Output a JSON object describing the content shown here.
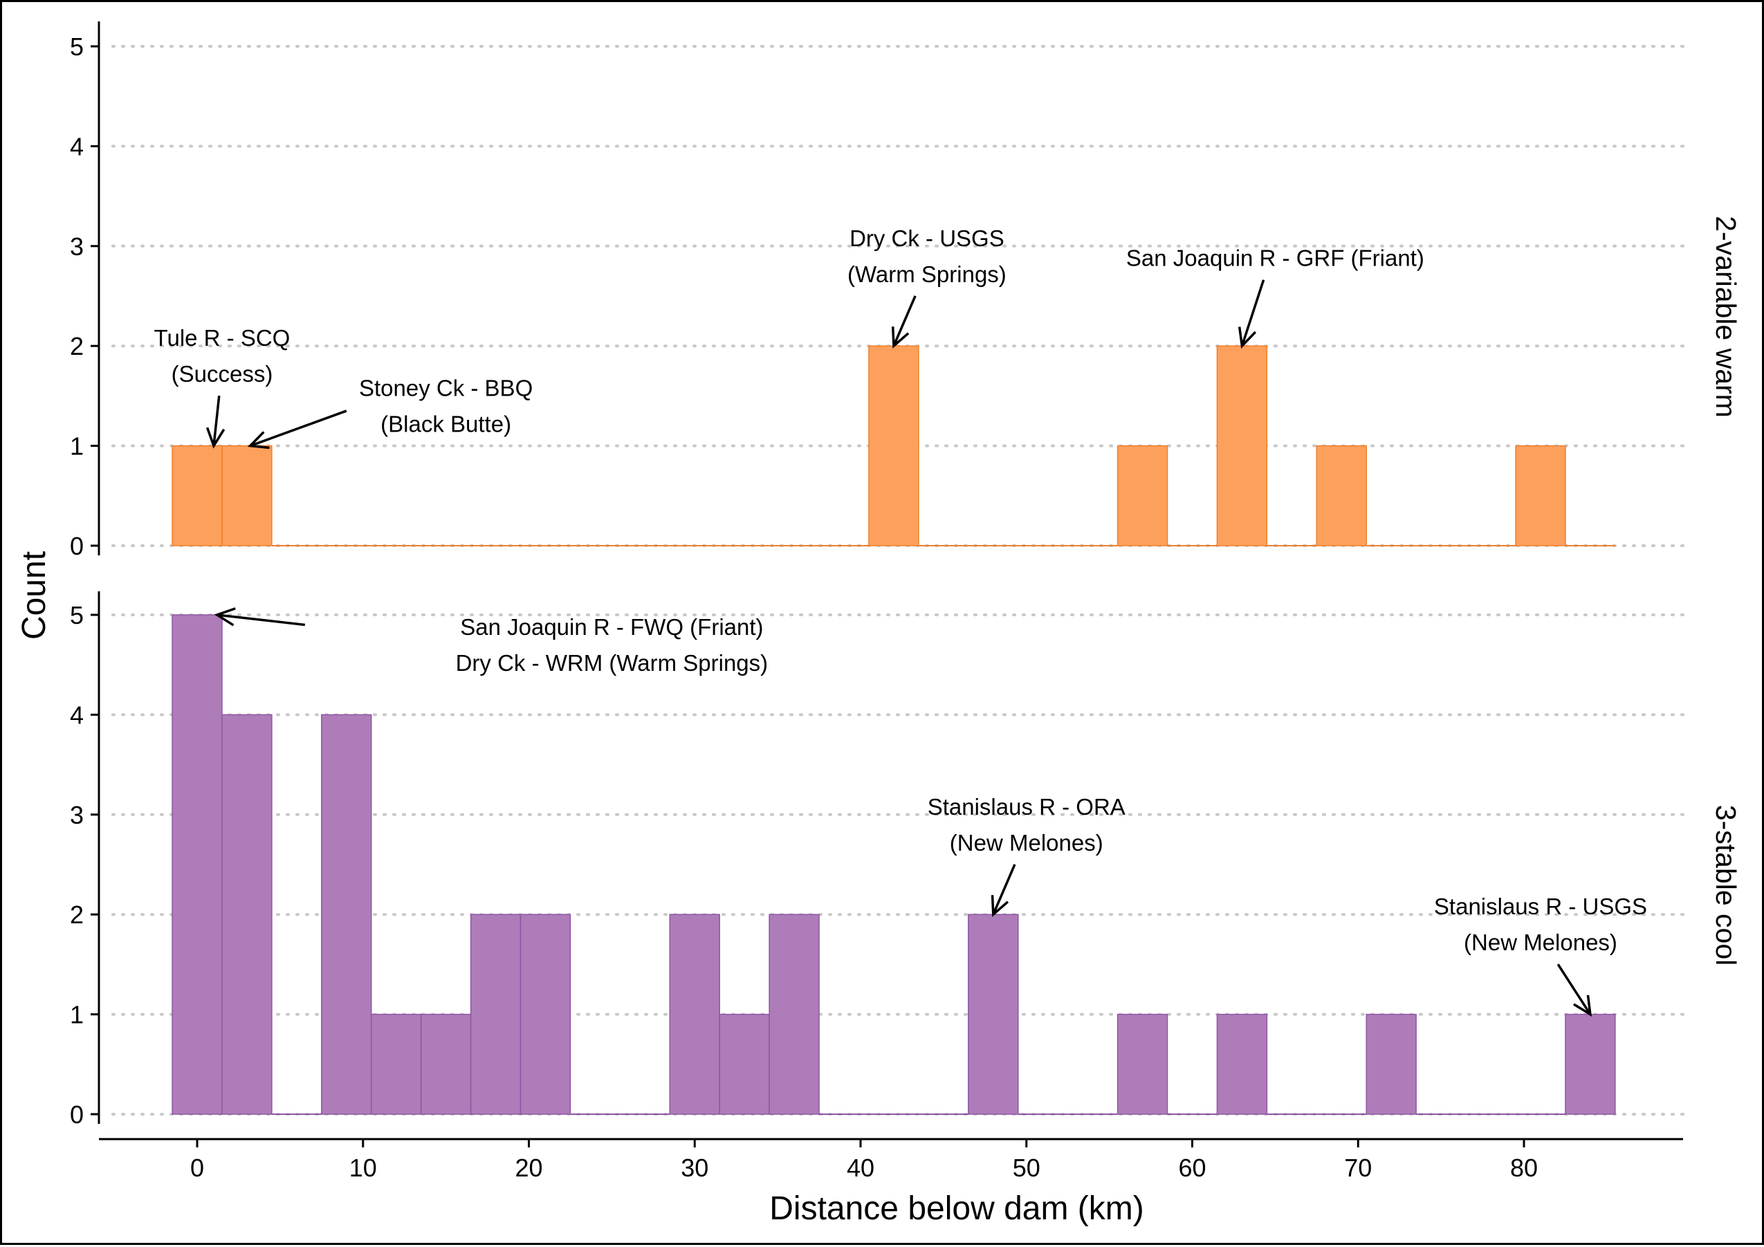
{
  "chart_data": {
    "type": "bar",
    "xlabel": "Distance below dam (km)",
    "ylabel": "Count",
    "xlim": [
      -6,
      90
    ],
    "ylim": [
      0,
      5
    ],
    "x_ticks": [
      0,
      10,
      20,
      30,
      40,
      50,
      60,
      70,
      80
    ],
    "y_ticks": [
      0,
      1,
      2,
      3,
      4,
      5
    ],
    "bin_width": 3,
    "grid": "horizontal dotted",
    "panels": [
      {
        "name": "2-variable warm",
        "color": "#FDA05C",
        "edge_color": "#F07F2A",
        "bins": [
          {
            "x": 0,
            "count": 1
          },
          {
            "x": 3,
            "count": 1
          },
          {
            "x": 6,
            "count": 0
          },
          {
            "x": 9,
            "count": 0
          },
          {
            "x": 12,
            "count": 0
          },
          {
            "x": 15,
            "count": 0
          },
          {
            "x": 18,
            "count": 0
          },
          {
            "x": 21,
            "count": 0
          },
          {
            "x": 24,
            "count": 0
          },
          {
            "x": 27,
            "count": 0
          },
          {
            "x": 30,
            "count": 0
          },
          {
            "x": 33,
            "count": 0
          },
          {
            "x": 36,
            "count": 0
          },
          {
            "x": 39,
            "count": 0
          },
          {
            "x": 42,
            "count": 2
          },
          {
            "x": 45,
            "count": 0
          },
          {
            "x": 48,
            "count": 0
          },
          {
            "x": 51,
            "count": 0
          },
          {
            "x": 54,
            "count": 0
          },
          {
            "x": 57,
            "count": 1
          },
          {
            "x": 60,
            "count": 0
          },
          {
            "x": 63,
            "count": 2
          },
          {
            "x": 66,
            "count": 0
          },
          {
            "x": 69,
            "count": 1
          },
          {
            "x": 72,
            "count": 0
          },
          {
            "x": 75,
            "count": 0
          },
          {
            "x": 78,
            "count": 0
          },
          {
            "x": 81,
            "count": 1
          },
          {
            "x": 84,
            "count": 0
          }
        ],
        "annotations": [
          {
            "lines": [
              "Tule R - SCQ",
              "(Success)"
            ],
            "tx": 1.5,
            "ty": 2.0,
            "ax": 1.0,
            "ay": 1.0
          },
          {
            "lines": [
              "Stoney Ck - BBQ",
              "(Black Butte)"
            ],
            "tx": 15,
            "ty": 1.5,
            "ax": 3.2,
            "ay": 1.0
          },
          {
            "lines": [
              "Dry Ck - USGS",
              "(Warm Springs)"
            ],
            "tx": 44,
            "ty": 3.0,
            "ax": 42,
            "ay": 2.0
          },
          {
            "lines": [
              "San Joaquin R - GRF (Friant)"
            ],
            "tx": 65,
            "ty": 2.8,
            "ax": 63,
            "ay": 2.0
          }
        ]
      },
      {
        "name": "3-stable cool",
        "color": "#AE7CB9",
        "edge_color": "#8F56A3",
        "bins": [
          {
            "x": 0,
            "count": 5
          },
          {
            "x": 3,
            "count": 4
          },
          {
            "x": 6,
            "count": 0
          },
          {
            "x": 9,
            "count": 4
          },
          {
            "x": 12,
            "count": 1
          },
          {
            "x": 15,
            "count": 1
          },
          {
            "x": 18,
            "count": 2
          },
          {
            "x": 21,
            "count": 2
          },
          {
            "x": 24,
            "count": 0
          },
          {
            "x": 27,
            "count": 0
          },
          {
            "x": 30,
            "count": 2
          },
          {
            "x": 33,
            "count": 1
          },
          {
            "x": 36,
            "count": 2
          },
          {
            "x": 39,
            "count": 0
          },
          {
            "x": 42,
            "count": 0
          },
          {
            "x": 45,
            "count": 0
          },
          {
            "x": 48,
            "count": 2
          },
          {
            "x": 51,
            "count": 0
          },
          {
            "x": 54,
            "count": 0
          },
          {
            "x": 57,
            "count": 1
          },
          {
            "x": 60,
            "count": 0
          },
          {
            "x": 63,
            "count": 1
          },
          {
            "x": 66,
            "count": 0
          },
          {
            "x": 69,
            "count": 0
          },
          {
            "x": 72,
            "count": 1
          },
          {
            "x": 75,
            "count": 0
          },
          {
            "x": 78,
            "count": 0
          },
          {
            "x": 81,
            "count": 0
          },
          {
            "x": 84,
            "count": 1
          }
        ],
        "annotations": [
          {
            "lines": [
              "San Joaquin R - FWQ (Friant)",
              "Dry Ck - WRM (Warm Springs)"
            ],
            "tx": 25,
            "ty": 4.8,
            "ax": 1.2,
            "ay": 5.0
          },
          {
            "lines": [
              "Stanislaus R - ORA",
              "(New Melones)"
            ],
            "tx": 50,
            "ty": 3.0,
            "ax": 48,
            "ay": 2.0
          },
          {
            "lines": [
              "Stanislaus R - USGS",
              "(New Melones)"
            ],
            "tx": 81,
            "ty": 2.0,
            "ax": 84,
            "ay": 1.0
          }
        ]
      }
    ]
  }
}
